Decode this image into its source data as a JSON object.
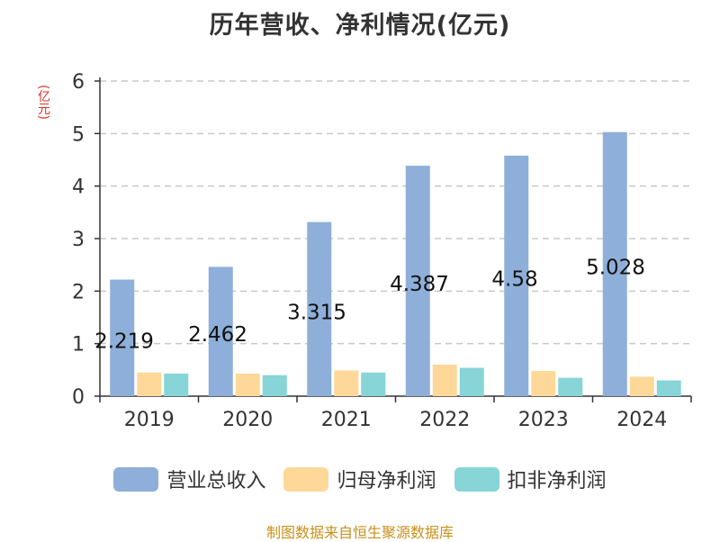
{
  "chart_data": {
    "type": "bar",
    "title": "历年营收、净利情况(亿元)",
    "y_unit": "(亿元)",
    "categories": [
      "2019",
      "2020",
      "2021",
      "2022",
      "2023",
      "2024"
    ],
    "series": [
      {
        "name": "营业总收入",
        "color": "#8eafd9",
        "values": [
          2.219,
          2.462,
          3.315,
          4.387,
          4.58,
          5.028
        ]
      },
      {
        "name": "归母净利润",
        "color": "#fdd898",
        "values": [
          0.45,
          0.43,
          0.49,
          0.6,
          0.48,
          0.37
        ]
      },
      {
        "name": "扣非净利润",
        "color": "#87d5d6",
        "values": [
          0.43,
          0.4,
          0.45,
          0.54,
          0.35,
          0.3
        ]
      }
    ],
    "data_labels": [
      "2.219",
      "2.462",
      "3.315",
      "4.387",
      "4.58",
      "5.028"
    ],
    "y_ticks": [
      "0",
      "1",
      "2",
      "3",
      "4",
      "5",
      "6"
    ],
    "ylim": [
      0,
      6
    ],
    "grid": true,
    "legend_position": "bottom"
  },
  "source_note": "制图数据来自恒生聚源数据库"
}
